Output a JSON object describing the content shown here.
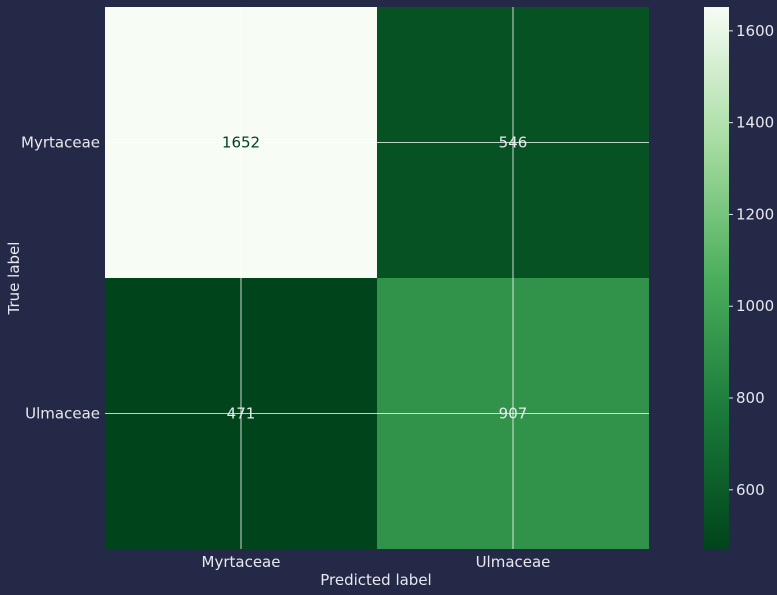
{
  "chart_data": {
    "type": "heatmap",
    "title": "",
    "xlabel": "Predicted label",
    "ylabel": "True label",
    "x_categories": [
      "Myrtaceae",
      "Ulmaceae"
    ],
    "y_categories": [
      "Myrtaceae",
      "Ulmaceae"
    ],
    "matrix": [
      [
        1652,
        546
      ],
      [
        471,
        907
      ]
    ],
    "colormap": "Greens_r",
    "color_range": [
      471,
      1652
    ],
    "colorbar_ticks": [
      600,
      800,
      1000,
      1200,
      1400,
      1600
    ],
    "grid": true,
    "colors": {
      "background": "#232946",
      "text_light": "#e8e8ee",
      "text_dark": "#00441b",
      "grid": "#ffffff"
    }
  }
}
